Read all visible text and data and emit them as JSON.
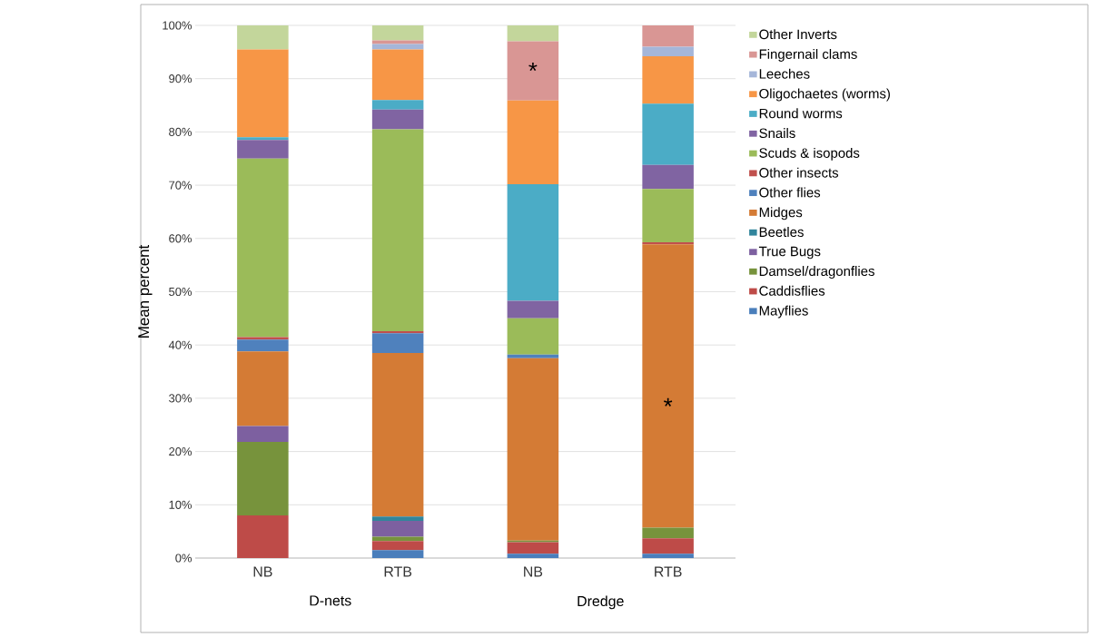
{
  "chart_data": {
    "type": "bar",
    "stacked": true,
    "ylabel": "Mean percent",
    "categories": [
      "NB",
      "RTB",
      "NB",
      "RTB"
    ],
    "ylim": [
      0,
      100
    ],
    "yticks": [
      {
        "value": 0,
        "label": "0%"
      },
      {
        "value": 10,
        "label": "10%"
      },
      {
        "value": 20,
        "label": "20%"
      },
      {
        "value": 30,
        "label": "30%"
      },
      {
        "value": 40,
        "label": "40%"
      },
      {
        "value": 50,
        "label": "50%"
      },
      {
        "value": 60,
        "label": "60%"
      },
      {
        "value": 70,
        "label": "70%"
      },
      {
        "value": 80,
        "label": "80%"
      },
      {
        "value": 90,
        "label": "90%"
      },
      {
        "value": 100,
        "label": "100%"
      }
    ],
    "grid": "y",
    "legend": "right",
    "series": [
      {
        "name": "Mayflies",
        "color": "#4a7ebb",
        "values": [
          0,
          1.5,
          0.8,
          0.8
        ]
      },
      {
        "name": "Caddisflies",
        "color": "#be4b48",
        "values": [
          8,
          1.7,
          2.2,
          2.9
        ]
      },
      {
        "name": "Damsel/dragonflies",
        "color": "#77933c",
        "values": [
          13.8,
          0.8,
          0.3,
          2
        ]
      },
      {
        "name": "True Bugs",
        "color": "#7d60a0",
        "values": [
          3,
          3,
          0,
          0
        ]
      },
      {
        "name": "Beetles",
        "color": "#31859c",
        "values": [
          0,
          0.8,
          0,
          0
        ]
      },
      {
        "name": "Midges",
        "color": "#d47b35",
        "values": [
          14,
          30.7,
          34.2,
          53.2
        ]
      },
      {
        "name": "Other flies",
        "color": "#4f81bd",
        "values": [
          2.2,
          3.7,
          0.7,
          0
        ]
      },
      {
        "name": "Other insects",
        "color": "#c0504d",
        "values": [
          0.5,
          0.4,
          0,
          0.4
        ]
      },
      {
        "name": "Scuds & isopods",
        "color": "#9bbb59",
        "values": [
          33.5,
          37.9,
          6.8,
          10
        ]
      },
      {
        "name": "Snails",
        "color": "#8064a2",
        "values": [
          3.5,
          3.7,
          3.3,
          4.5
        ]
      },
      {
        "name": "Round worms",
        "color": "#4bacc6",
        "values": [
          0.5,
          1.8,
          21.9,
          11.5
        ]
      },
      {
        "name": "Oligochaetes (worms)",
        "color": "#f79646",
        "values": [
          16.5,
          9.5,
          15.7,
          8.9
        ]
      },
      {
        "name": "Leeches",
        "color": "#a5b6d9",
        "values": [
          0,
          1,
          0,
          1.8
        ]
      },
      {
        "name": "Fingernail clams",
        "color": "#d99694",
        "values": [
          0,
          0.7,
          11.1,
          4
        ]
      },
      {
        "name": "Other Inverts",
        "color": "#c3d69b",
        "values": [
          4.5,
          2.8,
          3,
          0
        ]
      }
    ],
    "annotations": [
      "*",
      "*",
      "D-nets",
      "Dredge"
    ]
  }
}
